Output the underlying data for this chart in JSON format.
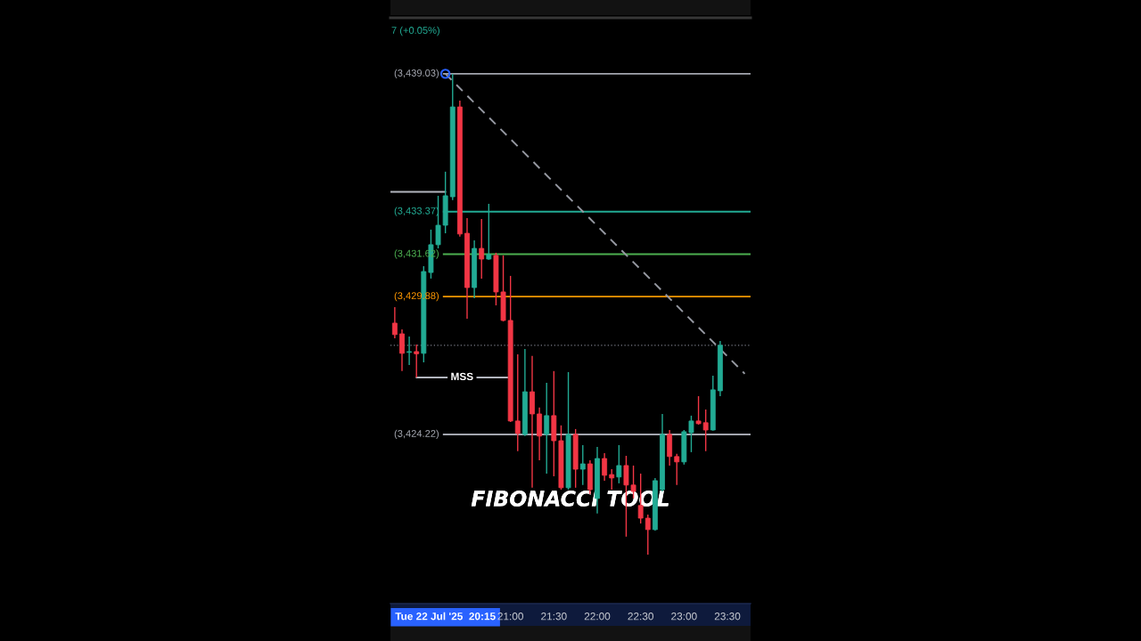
{
  "chart_data": {
    "type": "candlestick",
    "x": [
      "2025-07-22T19:40",
      "2025-07-22T19:45",
      "2025-07-22T19:50",
      "2025-07-22T19:55",
      "2025-07-22T20:00",
      "2025-07-22T20:05",
      "2025-07-22T20:10",
      "2025-07-22T20:15",
      "2025-07-22T20:20",
      "2025-07-22T20:25",
      "2025-07-22T20:30",
      "2025-07-22T20:35",
      "2025-07-22T20:40",
      "2025-07-22T20:45",
      "2025-07-22T20:50",
      "2025-07-22T20:55",
      "2025-07-22T21:00",
      "2025-07-22T21:05",
      "2025-07-22T21:10",
      "2025-07-22T21:15",
      "2025-07-22T21:20",
      "2025-07-22T21:25",
      "2025-07-22T21:30",
      "2025-07-22T21:35",
      "2025-07-22T21:40",
      "2025-07-22T21:45",
      "2025-07-22T21:50",
      "2025-07-22T21:55",
      "2025-07-22T22:00",
      "2025-07-22T22:05",
      "2025-07-22T22:10",
      "2025-07-22T22:15",
      "2025-07-22T22:20",
      "2025-07-22T22:25",
      "2025-07-22T22:30",
      "2025-07-22T22:35",
      "2025-07-22T22:40",
      "2025-07-22T22:45",
      "2025-07-22T22:50",
      "2025-07-22T22:55",
      "2025-07-22T23:00",
      "2025-07-22T23:05",
      "2025-07-22T23:10",
      "2025-07-22T23:15",
      "2025-07-22T23:20",
      "2025-07-22T23:25"
    ],
    "ohlc": [
      [
        3428.79,
        3429.45,
        3428.17,
        3428.32
      ],
      [
        3428.35,
        3428.53,
        3426.82,
        3427.55
      ],
      [
        3427.59,
        3428.24,
        3427.07,
        3427.62
      ],
      [
        3427.62,
        3427.91,
        3426.56,
        3427.53
      ],
      [
        3427.55,
        3431.13,
        3427.18,
        3430.91
      ],
      [
        3430.87,
        3432.63,
        3430.62,
        3432.01
      ],
      [
        3432.01,
        3434.02,
        3431.86,
        3432.81
      ],
      [
        3432.81,
        3435.01,
        3432.48,
        3434.02
      ],
      [
        3433.98,
        3439.03,
        3433.84,
        3437.67
      ],
      [
        3437.67,
        3437.93,
        3432.34,
        3432.45
      ],
      [
        3432.48,
        3433.1,
        3428.97,
        3430.25
      ],
      [
        3430.25,
        3432.19,
        3429.81,
        3431.86
      ],
      [
        3431.86,
        3433.07,
        3430.62,
        3431.42
      ],
      [
        3431.42,
        3433.69,
        3431.39,
        3431.61
      ],
      [
        3431.57,
        3431.68,
        3429.52,
        3430.07
      ],
      [
        3430.07,
        3431.57,
        3428.86,
        3428.9
      ],
      [
        3428.9,
        3430.73,
        3424.73,
        3424.77
      ],
      [
        3424.77,
        3427.51,
        3423.53,
        3424.26
      ],
      [
        3424.22,
        3427.73,
        3424.15,
        3425.97
      ],
      [
        3425.97,
        3427.44,
        3422.03,
        3425.06
      ],
      [
        3425.06,
        3425.32,
        3423.16,
        3424.15
      ],
      [
        3424.22,
        3426.34,
        3422.61,
        3424.99
      ],
      [
        3424.99,
        3426.82,
        3422.5,
        3423.96
      ],
      [
        3423.96,
        3424.59,
        3421.95,
        3422.03
      ],
      [
        3422.03,
        3426.78,
        3421.95,
        3424.22
      ],
      [
        3424.22,
        3424.44,
        3422.03,
        3422.79
      ],
      [
        3422.79,
        3423.78,
        3422.14,
        3423.01
      ],
      [
        3423.01,
        3423.16,
        3421.77,
        3421.95
      ],
      [
        3421.59,
        3423.71,
        3420.97,
        3423.23
      ],
      [
        3423.23,
        3423.45,
        3422.32,
        3422.54
      ],
      [
        3422.57,
        3422.79,
        3421.95,
        3422.43
      ],
      [
        3422.47,
        3423.78,
        3422.21,
        3422.94
      ],
      [
        3422.94,
        3423.34,
        3420.02,
        3422.14
      ],
      [
        3422.14,
        3422.94,
        3421.59,
        3421.88
      ],
      [
        3421.3,
        3422.61,
        3420.56,
        3420.78
      ],
      [
        3420.78,
        3420.93,
        3419.28,
        3420.31
      ],
      [
        3420.31,
        3422.43,
        3420.27,
        3422.32
      ],
      [
        3421.95,
        3425.06,
        3421.88,
        3424.22
      ],
      [
        3424.22,
        3424.4,
        3422.94,
        3423.31
      ],
      [
        3423.31,
        3423.42,
        3422.14,
        3423.09
      ],
      [
        3423.09,
        3424.4,
        3422.98,
        3424.33
      ],
      [
        3424.29,
        3424.99,
        3423.49,
        3424.77
      ],
      [
        3424.77,
        3425.79,
        3424.62,
        3424.66
      ],
      [
        3424.7,
        3425.24,
        3423.53,
        3424.4
      ],
      [
        3424.4,
        3426.63,
        3424.37,
        3426.05
      ],
      [
        3426.01,
        3428.06,
        3425.79,
        3427.88
      ]
    ],
    "colors": [
      "#f23645",
      "#f23645",
      "#22ab94",
      "#f23645",
      "#22ab94",
      "#22ab94",
      "#22ab94",
      "#22ab94",
      "#22ab94",
      "#f23645",
      "#f23645",
      "#22ab94",
      "#f23645",
      "#22ab94",
      "#f23645",
      "#f23645",
      "#f23645",
      "#f23645",
      "#22ab94",
      "#f23645",
      "#f23645",
      "#22ab94",
      "#f23645",
      "#f23645",
      "#22ab94",
      "#f23645",
      "#22ab94",
      "#f23645",
      "#22ab94",
      "#f23645",
      "#f23645",
      "#22ab94",
      "#f23645",
      "#f23645",
      "#f23645",
      "#f23645",
      "#22ab94",
      "#22ab94",
      "#f23645",
      "#f23645",
      "#22ab94",
      "#22ab94",
      "#f23645",
      "#f23645",
      "#22ab94",
      "#22ab94"
    ],
    "series": [
      {
        "type": "line",
        "x": [
          "2025-07-22T20:15",
          "2025-07-22T23:42"
        ],
        "values": [
          3439.03,
          3426.71
        ],
        "color": "#9598a1",
        "line_style": "dashed"
      },
      {
        "type": "line",
        "x": [
          "2025-07-22T19:37",
          "2025-07-22T20:15"
        ],
        "values": [
          3434.18,
          3434.18
        ],
        "color": "#b2b5be"
      },
      {
        "type": "line",
        "name": "MSS",
        "x": [
          "2025-07-22T19:55",
          "2025-07-22T20:58"
        ],
        "values": [
          3426.56,
          3426.56
        ],
        "color": "#b2b5be"
      },
      {
        "type": "scatter",
        "x": [
          "2025-07-22T20:15"
        ],
        "values": [
          3439.03
        ],
        "color": "#2962ff",
        "marker": "circle"
      }
    ],
    "ref_lines": [
      {
        "axis": "y",
        "value": 3439.03,
        "label": "(3,439.03)",
        "color": "#a3a6af"
      },
      {
        "axis": "y",
        "value": 3433.37,
        "label": "(3,433.37)",
        "color": "#22ab94"
      },
      {
        "axis": "y",
        "value": 3431.62,
        "label": "(3,431.62)",
        "color": "#4caf50"
      },
      {
        "axis": "y",
        "value": 3429.88,
        "label": "(3,429.88)",
        "color": "#ff9800"
      },
      {
        "axis": "y",
        "value": 3424.22,
        "label": "(3,424.22)",
        "color": "#a3a6af"
      },
      {
        "axis": "y",
        "value": 3427.88,
        "color": "#787b86",
        "line_style": "dotted"
      }
    ],
    "xlim": [
      "2025-07-22T19:37",
      "2025-07-22T23:46"
    ],
    "ylim": [
      3417.27,
      3441.33
    ],
    "xticks": [
      {
        "value": "2025-07-22T20:15",
        "label": "Tue 22 Jul '25  20:15"
      },
      {
        "value": "2025-07-22T21:00",
        "label": "21:00"
      },
      {
        "value": "2025-07-22T21:30",
        "label": "21:30"
      },
      {
        "value": "2025-07-22T22:00",
        "label": "22:00"
      },
      {
        "value": "2025-07-22T22:30",
        "label": "22:30"
      },
      {
        "value": "2025-07-22T23:00",
        "label": "23:00"
      },
      {
        "value": "2025-07-22T23:30",
        "label": "23:30"
      }
    ],
    "tick_labels": "x",
    "annotations": [
      "7 (+0.05%)",
      "FIBONACCI TOOL"
    ]
  }
}
